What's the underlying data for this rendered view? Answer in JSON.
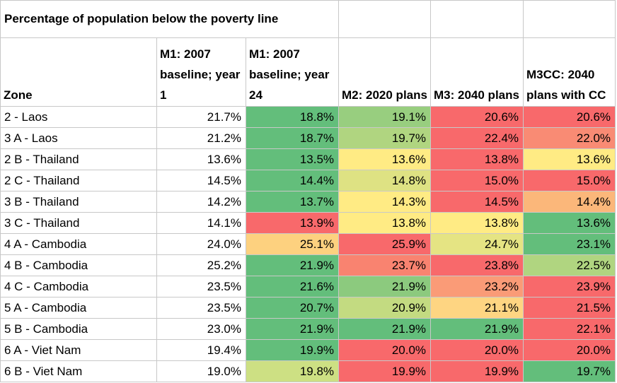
{
  "title": "Percentage of population below the poverty line",
  "headers": [
    "Zone",
    "M1: 2007 baseline; year 1",
    "M1: 2007 baseline; year 24",
    "M2: 2020 plans",
    "M3: 2040 plans",
    "M3CC: 2040 plans with CC"
  ],
  "rows": [
    {
      "zone": "2 - Laos",
      "v": [
        "21.7%",
        "18.8%",
        "19.1%",
        "20.6%",
        "20.6%"
      ],
      "bg": [
        "#ffffff",
        "#63be7b",
        "#98ce7f",
        "#f8696b",
        "#f8696b"
      ]
    },
    {
      "zone": "3 A - Laos",
      "v": [
        "21.2%",
        "18.7%",
        "19.7%",
        "22.4%",
        "22.0%"
      ],
      "bg": [
        "#ffffff",
        "#63be7b",
        "#b0d580",
        "#f8696b",
        "#f98b74"
      ]
    },
    {
      "zone": "2 B - Thailand",
      "v": [
        "13.6%",
        "13.5%",
        "13.6%",
        "13.8%",
        "13.6%"
      ],
      "bg": [
        "#ffffff",
        "#63be7b",
        "#ffeb84",
        "#f8696b",
        "#ffeb84"
      ]
    },
    {
      "zone": "2 C - Thailand",
      "v": [
        "14.5%",
        "14.4%",
        "14.8%",
        "15.0%",
        "15.0%"
      ],
      "bg": [
        "#ffffff",
        "#63be7b",
        "#dee283",
        "#f8696b",
        "#f8696b"
      ]
    },
    {
      "zone": "3 B - Thailand",
      "v": [
        "14.2%",
        "13.7%",
        "14.3%",
        "14.5%",
        "14.4%"
      ],
      "bg": [
        "#ffffff",
        "#63be7b",
        "#ffeb84",
        "#f8696b",
        "#fbb77a"
      ]
    },
    {
      "zone": "3 C - Thailand",
      "v": [
        "14.1%",
        "13.9%",
        "13.8%",
        "13.8%",
        "13.6%"
      ],
      "bg": [
        "#ffffff",
        "#f8696b",
        "#ffeb84",
        "#ffeb84",
        "#63be7b"
      ]
    },
    {
      "zone": "4 A - Cambodia",
      "v": [
        "24.0%",
        "25.1%",
        "25.9%",
        "24.7%",
        "23.1%"
      ],
      "bg": [
        "#ffffff",
        "#fdd17f",
        "#f8696b",
        "#e5e483",
        "#63be7b"
      ]
    },
    {
      "zone": "4 B - Cambodia",
      "v": [
        "25.2%",
        "21.9%",
        "23.7%",
        "23.8%",
        "22.5%"
      ],
      "bg": [
        "#ffffff",
        "#63be7b",
        "#f98370",
        "#f8696b",
        "#b0d580"
      ]
    },
    {
      "zone": "4 C - Cambodia",
      "v": [
        "23.5%",
        "21.6%",
        "21.9%",
        "23.2%",
        "23.9%"
      ],
      "bg": [
        "#ffffff",
        "#63be7b",
        "#8cca7e",
        "#fa9b77",
        "#f8696b"
      ]
    },
    {
      "zone": "5 A - Cambodia",
      "v": [
        "23.5%",
        "20.7%",
        "20.9%",
        "21.1%",
        "21.5%"
      ],
      "bg": [
        "#ffffff",
        "#63be7b",
        "#c3db81",
        "#fed582",
        "#f8696b"
      ]
    },
    {
      "zone": "5 B - Cambodia",
      "v": [
        "23.0%",
        "21.9%",
        "21.9%",
        "21.9%",
        "22.1%"
      ],
      "bg": [
        "#ffffff",
        "#63be7b",
        "#63be7b",
        "#63be7b",
        "#f8696b"
      ]
    },
    {
      "zone": "6 A - Viet Nam",
      "v": [
        "19.4%",
        "19.9%",
        "20.0%",
        "20.0%",
        "20.0%"
      ],
      "bg": [
        "#ffffff",
        "#63be7b",
        "#f8696b",
        "#f8696b",
        "#f8696b"
      ]
    },
    {
      "zone": "6 B - Viet Nam",
      "v": [
        "19.0%",
        "19.8%",
        "19.9%",
        "19.9%",
        "19.7%"
      ],
      "bg": [
        "#ffffff",
        "#cde083",
        "#f8696b",
        "#f8696b",
        "#63be7b"
      ]
    }
  ]
}
